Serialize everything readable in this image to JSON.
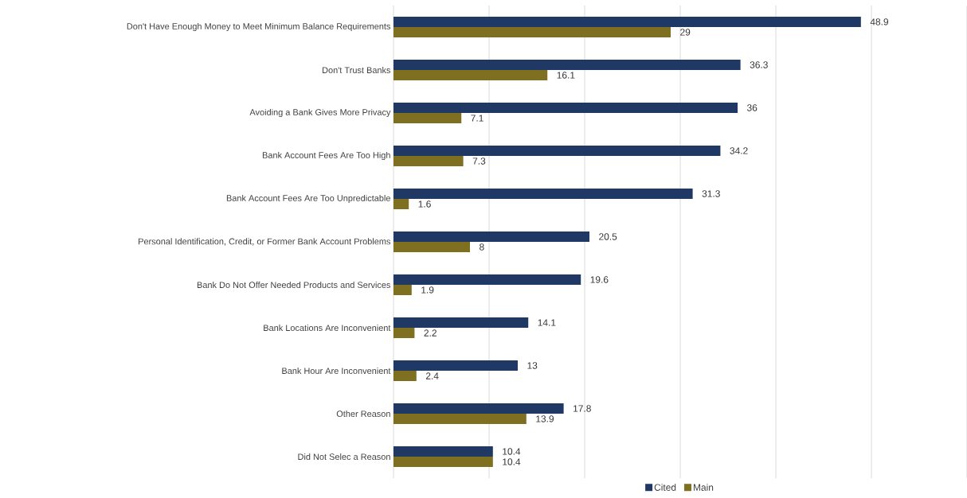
{
  "chart_data": {
    "type": "bar",
    "orientation": "horizontal",
    "categories": [
      "Don't Have Enough Money to Meet Minimum Balance Requirements",
      "Don't Trust Banks",
      "Avoiding a Bank Gives More Privacy",
      "Bank Account Fees Are Too High",
      "Bank Account Fees Are Too Unpredictable",
      "Personal Identification, Credit, or Former Bank Account Problems",
      "Bank Do Not Offer Needed Products and Services",
      "Bank Locations Are Inconvenient",
      "Bank Hour Are Inconvenient",
      "Other Reason",
      "Did Not Selec a Reason"
    ],
    "series": [
      {
        "name": "Cited",
        "color": "#203864",
        "values": [
          48.9,
          36.3,
          36,
          34.2,
          31.3,
          20.5,
          19.6,
          14.1,
          13,
          17.8,
          10.4
        ]
      },
      {
        "name": "Main",
        "color": "#7f6f20",
        "values": [
          29,
          16.1,
          7.1,
          7.3,
          1.6,
          8,
          1.9,
          2.2,
          2.4,
          13.9,
          10.4
        ]
      }
    ],
    "xlim": [
      0,
      60
    ],
    "xticks": [
      {
        "value": 0,
        "label": null
      },
      {
        "value": 10,
        "label": null
      },
      {
        "value": 20,
        "label": null
      },
      {
        "value": 30,
        "label": null
      },
      {
        "value": 40,
        "label": null
      },
      {
        "value": 50,
        "label": null
      },
      {
        "value": 60,
        "label": null
      }
    ],
    "tick_labels": "y",
    "grid": "x",
    "data_labels": true,
    "legend": "bottom"
  }
}
